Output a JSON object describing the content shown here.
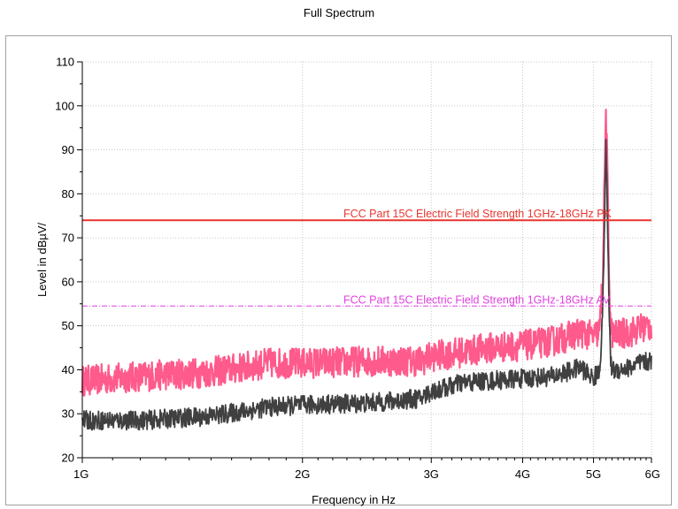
{
  "chart_data": {
    "type": "line",
    "title": "Full Spectrum",
    "xlabel": "Frequency in Hz",
    "ylabel": "Level in dBµV/",
    "x_scale": "log",
    "xlim_hz": [
      1000000000,
      6000000000
    ],
    "ylim": [
      20,
      110
    ],
    "y_ticks": [
      20,
      30,
      40,
      50,
      60,
      70,
      80,
      90,
      100,
      110
    ],
    "x_ticks": [
      {
        "value": 1000000000,
        "label": "1G"
      },
      {
        "value": 2000000000,
        "label": "2G"
      },
      {
        "value": 3000000000,
        "label": "3G"
      },
      {
        "value": 4000000000,
        "label": "4G"
      },
      {
        "value": 5000000000,
        "label": "5G"
      },
      {
        "value": 6000000000,
        "label": "6G"
      }
    ],
    "grid": true,
    "limits": [
      {
        "label": "FCC Part 15C Electric Field Strength 1GHz-18GHz PK",
        "value": 74,
        "color": "#e8352f",
        "style": "solid"
      },
      {
        "label": "FCC Part 15C Electric Field Strength 1GHz-18GHz AV",
        "value": 54.5,
        "color": "#e040e0",
        "style": "dashdot"
      }
    ],
    "series": [
      {
        "color": "#ff5a8c",
        "band": 3.5,
        "x_ghz": [
          1.0,
          1.2,
          1.5,
          1.8,
          2.0,
          2.5,
          2.9,
          3.0,
          3.3,
          3.6,
          4.0,
          4.4,
          4.8,
          5.0,
          5.1,
          5.15,
          5.18,
          5.2,
          5.22,
          5.25,
          5.28,
          5.32,
          5.4,
          5.6,
          5.8,
          6.0
        ],
        "values": [
          37.5,
          38.5,
          39.5,
          41.5,
          41.5,
          42,
          42,
          43,
          44,
          45,
          45.5,
          46.5,
          48.5,
          47.5,
          49,
          63,
          86,
          99,
          86,
          62,
          49,
          48,
          48,
          48.5,
          49.5,
          50
        ]
      },
      {
        "color": "#404040",
        "band": 2.2,
        "x_ghz": [
          1.0,
          1.2,
          1.5,
          1.8,
          2.0,
          2.5,
          2.9,
          3.0,
          3.3,
          3.6,
          4.0,
          4.4,
          4.8,
          5.0,
          5.1,
          5.15,
          5.18,
          5.2,
          5.22,
          5.25,
          5.28,
          5.32,
          5.4,
          5.6,
          5.8,
          6.0
        ],
        "values": [
          28.5,
          28.5,
          29.5,
          31.5,
          32,
          32.5,
          33.5,
          35,
          37,
          37.5,
          38,
          38.5,
          40.5,
          38,
          40,
          55,
          78,
          91,
          78,
          55,
          41,
          40,
          40,
          40.5,
          41.5,
          42
        ]
      }
    ]
  }
}
